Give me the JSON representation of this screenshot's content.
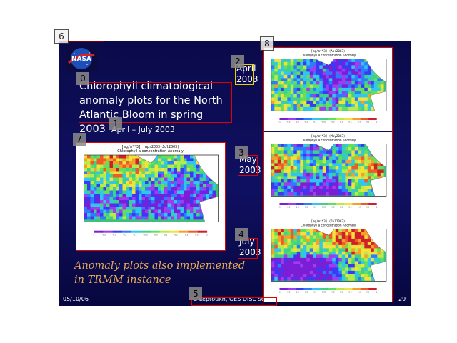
{
  "slide": {
    "title": "Chlorophyll climatological anomaly plots for the North Atlantic Bloom in spring 2003",
    "subtitle": "April – July 2003",
    "note": "Anomaly plots also implemented in TRMM instance",
    "footer_date": "05/10/06",
    "footer_author": "G Leptoukh, GES DISC seminar",
    "page_number": "29",
    "logo_text": "NASA",
    "month_labels": {
      "april": [
        "April",
        "2003"
      ],
      "may": [
        "May",
        "2003"
      ],
      "july": [
        "July",
        "2003"
      ]
    }
  },
  "plots": {
    "main": {
      "header": "[mg/m**3] (Apr2003-Jul2003)",
      "title": "Chlorophyll a concentration Anomaly"
    },
    "april": {
      "header": "[mg/m**3] (Apr2003)",
      "title": "Chlorophyll a concentration Anomaly"
    },
    "may": {
      "header": "[mg/m**3] (May2003)",
      "title": "Chlorophyll a concentration Anomaly"
    },
    "july": {
      "header": "[mg/m**3] (Jul2003)",
      "title": "Chlorophyll a concentration Anomaly"
    },
    "colorbar_ticks": [
      "-1",
      "-0.5",
      "-0.3",
      "-0.2",
      "-0.1",
      "-0.05",
      "0.05",
      "0.1",
      "0.2",
      "0.3",
      "0.5",
      "1"
    ]
  },
  "annotations": [
    "0",
    "1",
    "2",
    "3",
    "4",
    "5",
    "6",
    "7",
    "8"
  ],
  "colors": {
    "background": "#0d0d55",
    "note": "#e8a85a",
    "annotation_red": "#e00000",
    "annotation_yellow": "#e8d000"
  }
}
